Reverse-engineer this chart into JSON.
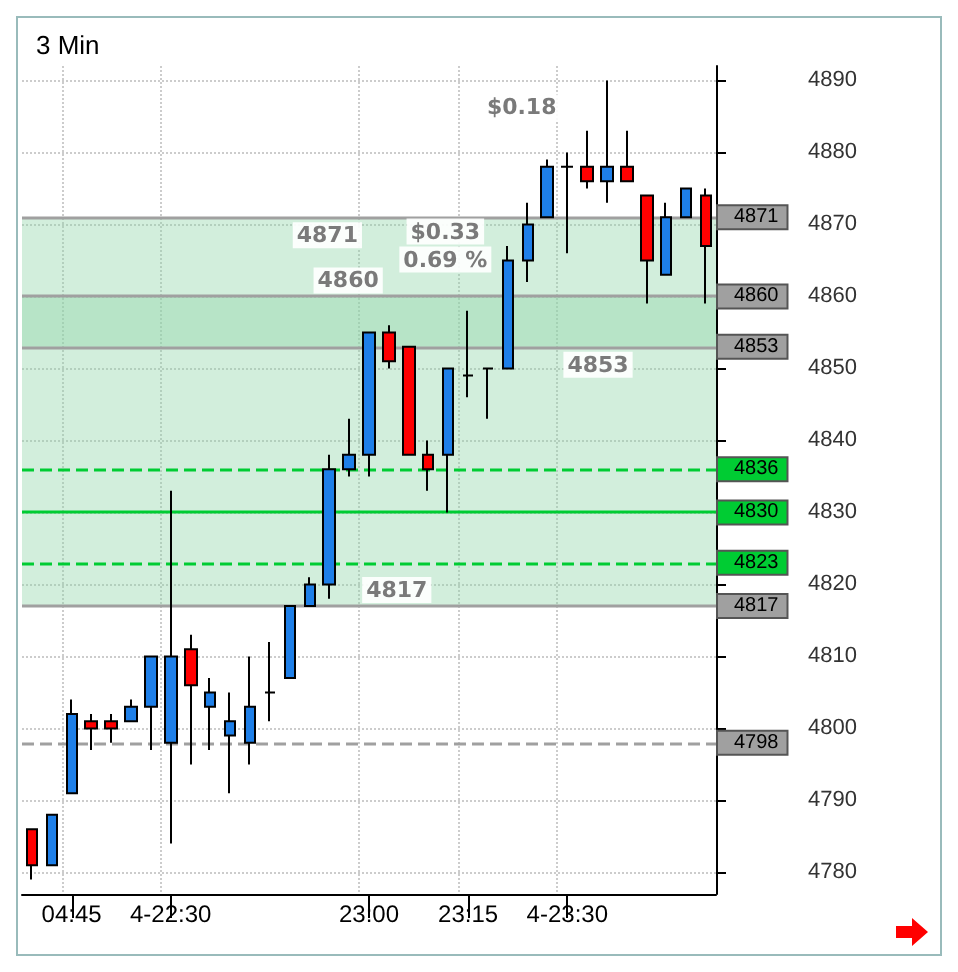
{
  "chart_data": {
    "type": "candlestick",
    "title": "3 Min",
    "categories": [
      null,
      null,
      "04:45",
      null,
      null,
      null,
      null,
      "4-22:30",
      null,
      null,
      null,
      null,
      null,
      null,
      null,
      null,
      null,
      "23:00",
      null,
      null,
      null,
      null,
      "23:15",
      null,
      null,
      null,
      null,
      "4-23:30",
      null,
      null,
      null,
      null,
      null,
      null,
      null
    ],
    "ohlc": [
      [
        4786,
        4786,
        4779,
        4781
      ],
      [
        4781,
        4788,
        4781,
        4788
      ],
      [
        4791,
        4804,
        4791,
        4802
      ],
      [
        4801,
        4802,
        4797,
        4800
      ],
      [
        4801,
        4802,
        4798,
        4800
      ],
      [
        4801,
        4804,
        4801,
        4803
      ],
      [
        4803,
        4810,
        4797,
        4810
      ],
      [
        4798,
        4833,
        4784,
        4810
      ],
      [
        4811,
        4813,
        4795,
        4806
      ],
      [
        4803,
        4807,
        4797,
        4805
      ],
      [
        4799,
        4805,
        4791,
        4801
      ],
      [
        4798,
        4810,
        4795,
        4803
      ],
      [
        4805,
        4812,
        4801,
        4805
      ],
      [
        4807,
        4817,
        4807,
        4817
      ],
      [
        4817,
        4821,
        4817,
        4820
      ],
      [
        4820,
        4838,
        4818,
        4836
      ],
      [
        4836,
        4843,
        4835,
        4838
      ],
      [
        4838,
        4855,
        4835,
        4855
      ],
      [
        4855,
        4856,
        4850,
        4851
      ],
      [
        4853,
        4853,
        4838,
        4838
      ],
      [
        4838,
        4840,
        4833,
        4836
      ],
      [
        4838,
        4850,
        4830,
        4850
      ],
      [
        4849,
        4858,
        4846,
        4849
      ],
      [
        4850,
        4850,
        4843,
        4850
      ],
      [
        4850,
        4867,
        4850,
        4865
      ],
      [
        4865,
        4873,
        4862,
        4870
      ],
      [
        4871,
        4879,
        4871,
        4878
      ],
      [
        4878,
        4880,
        4866,
        4878
      ],
      [
        4878,
        4883,
        4875,
        4876
      ],
      [
        4876,
        4890,
        4873,
        4878
      ],
      [
        4878,
        4883,
        4876,
        4876
      ],
      [
        4874,
        4874,
        4859,
        4865
      ],
      [
        4863,
        4873,
        4863,
        4871
      ],
      [
        4871,
        4875,
        4871,
        4875
      ],
      [
        4874,
        4875,
        4859,
        4867
      ]
    ],
    "colors": [
      "#ff0000",
      "#1e7fe8",
      "#1e7fe8",
      "#ff0000",
      "#ff0000",
      "#1e7fe8",
      "#1e7fe8",
      "#1e7fe8",
      "#ff0000",
      "#1e7fe8",
      "#1e7fe8",
      "#1e7fe8",
      "#000000",
      "#1e7fe8",
      "#1e7fe8",
      "#1e7fe8",
      "#1e7fe8",
      "#1e7fe8",
      "#ff0000",
      "#ff0000",
      "#ff0000",
      "#1e7fe8",
      "#000000",
      "#000000",
      "#1e7fe8",
      "#1e7fe8",
      "#1e7fe8",
      "#000000",
      "#ff0000",
      "#1e7fe8",
      "#ff0000",
      "#ff0000",
      "#1e7fe8",
      "#1e7fe8",
      "#ff0000"
    ],
    "ylim": [
      4777,
      4892
    ],
    "yticks": [
      4780,
      4790,
      4800,
      4810,
      4820,
      4830,
      4840,
      4850,
      4860,
      4870,
      4880,
      4890
    ],
    "grid": true,
    "ref_lines": [
      {
        "axis": "y",
        "value": 4798,
        "label": "4798",
        "color": "#a0a0a0",
        "line_style": "dashed"
      },
      {
        "axis": "y",
        "value": 4817,
        "label": "4817",
        "color": "#a0a0a0",
        "line_style": "solid"
      },
      {
        "axis": "y",
        "value": 4823,
        "label": "4823",
        "color": "#00cc33",
        "line_style": "dashed"
      },
      {
        "axis": "y",
        "value": 4830,
        "label": "4830",
        "color": "#00cc33",
        "line_style": "solid"
      },
      {
        "axis": "y",
        "value": 4836,
        "label": "4836",
        "color": "#00cc33",
        "line_style": "dashed"
      },
      {
        "axis": "y",
        "value": 4853,
        "label": "4853",
        "color": "#a0a0a0",
        "line_style": "solid"
      },
      {
        "axis": "y",
        "value": 4860,
        "label": "4860",
        "color": "#a0a0a0",
        "line_style": "solid"
      },
      {
        "axis": "y",
        "value": 4871,
        "label": "4871",
        "color": "#a0a0a0",
        "line_style": "solid"
      }
    ],
    "bands": [
      {
        "axis": "y",
        "from": 4817,
        "to": 4860,
        "color": "#8fd4a8"
      },
      {
        "axis": "y",
        "from": 4853,
        "to": 4871,
        "color": "#8fd4a8"
      }
    ],
    "annotations": [
      {
        "text": "4817",
        "y": 4817
      },
      {
        "text": "4860",
        "y": 4860
      },
      "$0.33",
      "0.69 %",
      {
        "text": "4853",
        "y": 4853
      },
      {
        "text": "4871",
        "y": 4871
      },
      "$0.18"
    ]
  }
}
